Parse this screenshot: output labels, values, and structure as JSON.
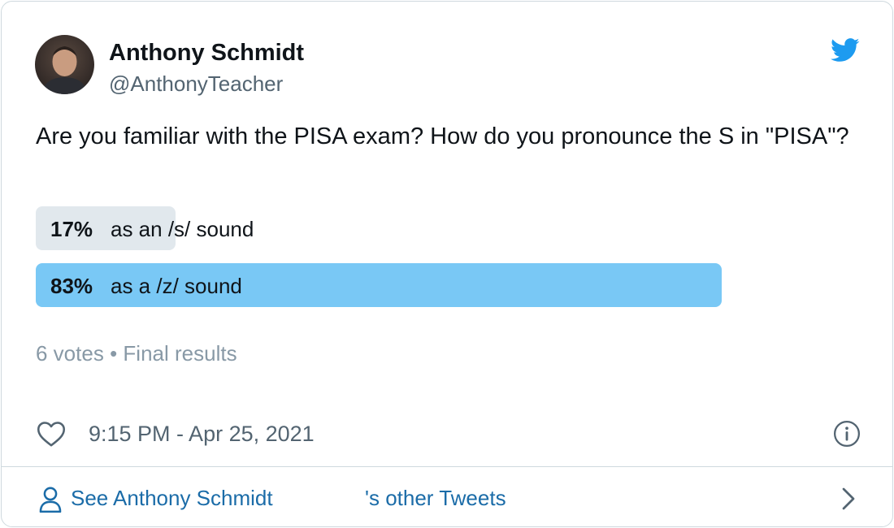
{
  "author": {
    "name": "Anthony Schmidt",
    "handle": "@AnthonyTeacher"
  },
  "tweet": {
    "text": "Are you familiar with the PISA exam? How do you pronounce the S in \"PISA\"?"
  },
  "poll": {
    "options": [
      {
        "percent_label": "17%",
        "percent": 17,
        "label": "as an /s/ sound",
        "winner": false
      },
      {
        "percent_label": "83%",
        "percent": 83,
        "label": "as a /z/ sound",
        "winner": true
      }
    ],
    "votes": "6 votes",
    "separator": "•",
    "status": "Final results"
  },
  "meta": {
    "timestamp": "9:15 PM - Apr 25, 2021"
  },
  "footer": {
    "name": "See Anthony Schmidt",
    "suffix": "'s other Tweets"
  },
  "icons": {
    "brand": "twitter-bird-icon",
    "like": "heart-icon",
    "info": "info-icon",
    "person": "person-icon",
    "chevron": "chevron-right-icon"
  },
  "colors": {
    "brand": "#1d9bf0",
    "winner_bar": "#79c8f5",
    "loser_bar": "#e1e8ed",
    "link": "#1b6ca8",
    "muted": "#8899a6"
  }
}
